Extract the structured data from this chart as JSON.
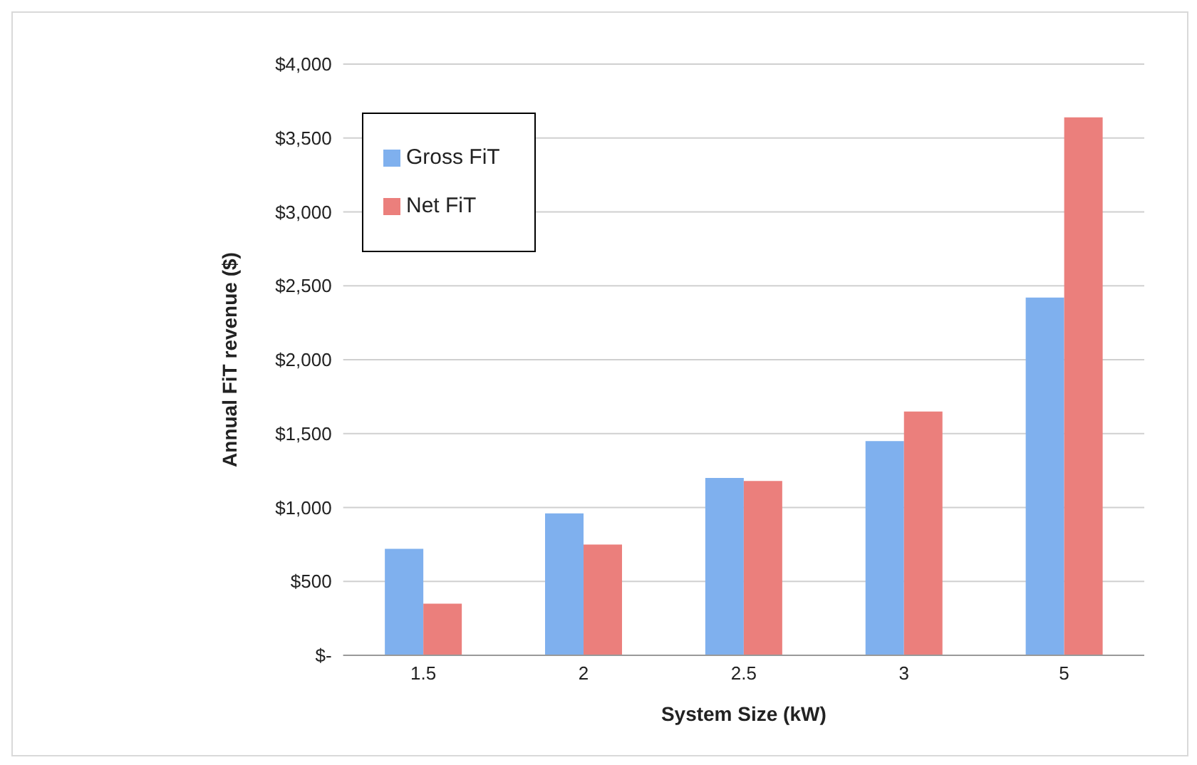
{
  "chart_data": {
    "type": "bar",
    "xlabel": "System Size (kW)",
    "ylabel": "Annual FiT revenue ($)",
    "categories": [
      "1.5",
      "2",
      "2.5",
      "3",
      "5"
    ],
    "series": [
      {
        "name": "Gross FiT",
        "color": "#7fb0ee",
        "values": [
          720,
          960,
          1200,
          1450,
          2420
        ]
      },
      {
        "name": "Net FiT",
        "color": "#eb7f7c",
        "values": [
          350,
          750,
          1180,
          1650,
          3640
        ]
      }
    ],
    "ylim": [
      0,
      4000
    ],
    "yticks": [
      {
        "value": 0,
        "label": "$-"
      },
      {
        "value": 500,
        "label": "$500"
      },
      {
        "value": 1000,
        "label": "$1,000"
      },
      {
        "value": 1500,
        "label": "$1,500"
      },
      {
        "value": 2000,
        "label": "$2,000"
      },
      {
        "value": 2500,
        "label": "$2,500"
      },
      {
        "value": 3000,
        "label": "$3,000"
      },
      {
        "value": 3500,
        "label": "$3,500"
      },
      {
        "value": 4000,
        "label": "$4,000"
      }
    ],
    "grid": "y",
    "legend": "top left"
  }
}
